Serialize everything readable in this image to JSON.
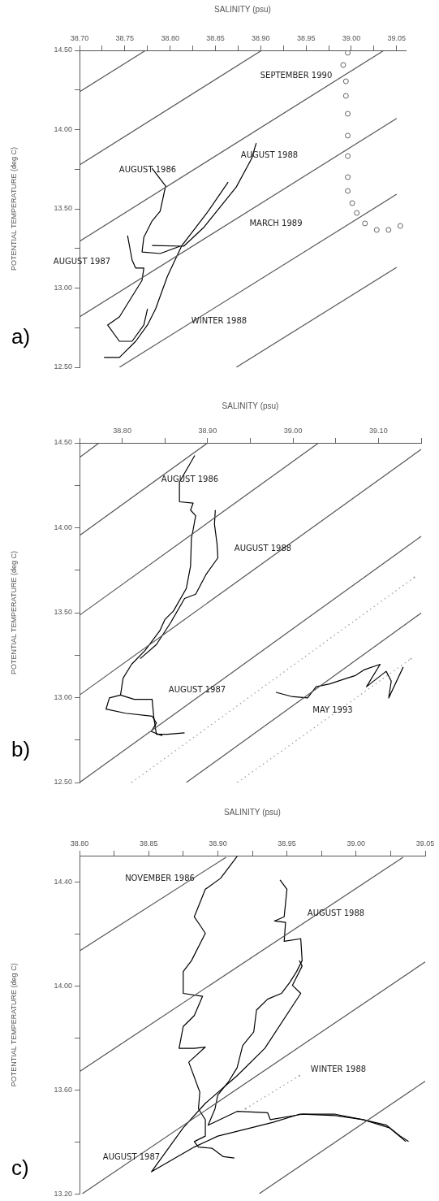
{
  "chart_data": [
    {
      "type": "line",
      "xlabel": "SALINITY (psu)",
      "ylabel": "POTENTIAL TEMPERATURE (deg C)",
      "xlim": [
        38.7,
        39.06
      ],
      "ylim": [
        12.5,
        14.5
      ],
      "xticks": [
        {
          "value": 38.7,
          "label": "38.70"
        },
        {
          "value": 38.725,
          "label": null
        },
        {
          "value": 38.75,
          "label": "38.75"
        },
        {
          "value": 38.775,
          "label": null
        },
        {
          "value": 38.8,
          "label": "38.80"
        },
        {
          "value": 38.825,
          "label": null
        },
        {
          "value": 38.85,
          "label": "38.85"
        },
        {
          "value": 38.875,
          "label": null
        },
        {
          "value": 38.9,
          "label": "38.90"
        },
        {
          "value": 38.925,
          "label": null
        },
        {
          "value": 38.95,
          "label": "38.95"
        },
        {
          "value": 38.975,
          "label": null
        },
        {
          "value": 39.0,
          "label": "39.00"
        },
        {
          "value": 39.025,
          "label": null
        },
        {
          "value": 39.05,
          "label": "39.05"
        }
      ],
      "yticks": [
        {
          "value": 14.5,
          "label": "14.50"
        },
        {
          "value": 14.25,
          "label": null
        },
        {
          "value": 14.0,
          "label": "14.00"
        },
        {
          "value": 13.75,
          "label": null
        },
        {
          "value": 13.5,
          "label": "13.50"
        },
        {
          "value": 13.25,
          "label": null
        },
        {
          "value": 13.0,
          "label": "13.00"
        },
        {
          "value": 12.75,
          "label": null
        },
        {
          "value": 12.5,
          "label": "12.50"
        }
      ],
      "series": [
        {
          "color": "#555555",
          "x": [
            38.7,
            38.773
          ],
          "values": [
            14.239,
            14.5
          ]
        },
        {
          "color": "#555555",
          "x": [
            38.7,
            38.901
          ],
          "values": [
            13.777,
            14.5
          ]
        },
        {
          "color": "#555555",
          "x": [
            38.7,
            39.036
          ],
          "values": [
            13.295,
            14.5
          ]
        },
        {
          "color": "#555555",
          "x": [
            38.7,
            39.05
          ],
          "values": [
            12.818,
            14.07
          ]
        },
        {
          "color": "#555555",
          "x": [
            38.744,
            39.05
          ],
          "values": [
            12.5,
            13.592
          ]
        },
        {
          "color": "#555555",
          "x": [
            38.873,
            39.05
          ],
          "values": [
            12.5,
            13.131
          ]
        },
        {
          "color": "#000000",
          "x": [
            38.78,
            38.795,
            38.789,
            38.78,
            38.771,
            38.769,
            38.789,
            38.811
          ],
          "values": [
            13.756,
            13.644,
            13.485,
            13.423,
            13.321,
            13.228,
            13.218,
            13.264
          ]
        },
        {
          "color": "#000000",
          "x": [
            38.895,
            38.89,
            38.873,
            38.837,
            38.815,
            38.78
          ],
          "values": [
            13.915,
            13.818,
            13.638,
            13.382,
            13.264,
            13.269
          ]
        },
        {
          "color": "#000000",
          "x": [
            38.864,
            38.842,
            38.813,
            38.797,
            38.784,
            38.775,
            38.762,
            38.744,
            38.727
          ],
          "values": [
            13.669,
            13.485,
            13.269,
            13.074,
            12.869,
            12.767,
            12.664,
            12.562,
            12.562
          ]
        },
        {
          "color": "#000000",
          "x": [
            38.753,
            38.758,
            38.762,
            38.771,
            38.769,
            38.744,
            38.731,
            38.744,
            38.758,
            38.771,
            38.775
          ],
          "values": [
            13.331,
            13.177,
            13.126,
            13.126,
            13.049,
            12.818,
            12.767,
            12.664,
            12.664,
            12.767,
            12.869
          ]
        },
        {
          "type": "scatter",
          "marker": "circle",
          "color": "#666666",
          "x": [
            38.996,
            38.991,
            38.994,
            38.994,
            38.996,
            38.996,
            38.996,
            38.996,
            38.996,
            39.001,
            39.006,
            39.015,
            39.028,
            39.041,
            39.054
          ],
          "values": [
            14.485,
            14.408,
            14.305,
            14.213,
            14.1,
            13.962,
            13.833,
            13.7,
            13.613,
            13.536,
            13.474,
            13.408,
            13.367,
            13.367,
            13.392
          ]
        }
      ],
      "annotations": [
        "SEPTEMBER 1990",
        "AUGUST 1988",
        "AUGUST 1986",
        "MARCH 1989",
        "AUGUST 1987",
        "WINTER 1988",
        "a)"
      ]
    },
    {
      "type": "line",
      "xlabel": "SALINITY (psu)",
      "ylabel": "POTENTIAL TEMPERATURE (deg C)",
      "xlim": [
        38.75,
        39.15
      ],
      "ylim": [
        12.5,
        14.5
      ],
      "xticks": [
        {
          "value": 38.75,
          "label": null
        },
        {
          "value": 38.8,
          "label": "38.80"
        },
        {
          "value": 38.85,
          "label": null
        },
        {
          "value": 38.9,
          "label": "38.90"
        },
        {
          "value": 38.95,
          "label": null
        },
        {
          "value": 39.0,
          "label": "39.00"
        },
        {
          "value": 39.05,
          "label": null
        },
        {
          "value": 39.1,
          "label": "39.10"
        },
        {
          "value": 39.15,
          "label": null
        }
      ],
      "yticks": [
        {
          "value": 14.5,
          "label": "14.50"
        },
        {
          "value": 14.25,
          "label": null
        },
        {
          "value": 14.0,
          "label": "14.00"
        },
        {
          "value": 13.75,
          "label": null
        },
        {
          "value": 13.5,
          "label": "13.50"
        },
        {
          "value": 13.25,
          "label": null
        },
        {
          "value": 13.0,
          "label": "13.00"
        },
        {
          "value": 12.75,
          "label": null
        },
        {
          "value": 12.5,
          "label": "12.50"
        }
      ],
      "series": [
        {
          "color": "#555555",
          "x": [
            38.75,
            38.773
          ],
          "values": [
            14.414,
            14.5
          ]
        },
        {
          "color": "#555555",
          "x": [
            38.75,
            38.9
          ],
          "values": [
            13.955,
            14.5
          ]
        },
        {
          "color": "#555555",
          "x": [
            38.75,
            39.03
          ],
          "values": [
            13.485,
            14.5
          ]
        },
        {
          "color": "#555555",
          "x": [
            38.75,
            39.15
          ],
          "values": [
            13.015,
            14.462
          ]
        },
        {
          "color": "#555555",
          "x": [
            38.75,
            39.15
          ],
          "values": [
            12.5,
            13.95
          ]
        },
        {
          "color": "#555555",
          "x": [
            38.875,
            39.15
          ],
          "values": [
            12.5,
            13.498
          ]
        },
        {
          "color": "#999999",
          "line_style": "dotted",
          "x": [
            38.811,
            39.142
          ],
          "values": [
            12.5,
            13.708
          ]
        },
        {
          "color": "#999999",
          "line_style": "dotted",
          "x": [
            38.935,
            39.138
          ],
          "values": [
            12.5,
            13.229
          ]
        },
        {
          "color": "#000000",
          "x": [
            38.885,
            38.883,
            38.867,
            38.867,
            38.883,
            38.88,
            38.886,
            38.883,
            38.881,
            38.88,
            38.875,
            38.86,
            38.85,
            38.844,
            38.827,
            38.811,
            38.801,
            38.798,
            38.814,
            38.835,
            38.837,
            38.84,
            38.853,
            38.873
          ],
          "values": [
            14.426,
            14.409,
            14.269,
            14.153,
            14.145,
            14.104,
            14.071,
            13.988,
            13.939,
            13.774,
            13.642,
            13.51,
            13.46,
            13.394,
            13.279,
            13.196,
            13.114,
            13.015,
            12.99,
            12.99,
            12.883,
            12.784,
            12.784,
            12.792
          ]
        },
        {
          "color": "#000000",
          "x": [
            38.909,
            38.908,
            38.911,
            38.912,
            38.898,
            38.886,
            38.873,
            38.857,
            38.84,
            38.821
          ],
          "values": [
            14.104,
            14.021,
            13.906,
            13.823,
            13.724,
            13.609,
            13.584,
            13.444,
            13.312,
            13.229
          ]
        },
        {
          "color": "#000000",
          "x": [
            38.798,
            38.785,
            38.781,
            38.804,
            38.835,
            38.84,
            38.834,
            38.847
          ],
          "values": [
            13.015,
            12.998,
            12.932,
            12.908,
            12.891,
            12.85,
            12.8,
            12.776
          ]
        },
        {
          "color": "#000000",
          "x": [
            38.98,
            38.998,
            39.017,
            39.027,
            39.043,
            39.063,
            39.073,
            39.083,
            39.102,
            39.086,
            39.109,
            39.115,
            39.112,
            39.129
          ],
          "values": [
            13.031,
            13.007,
            12.998,
            13.064,
            13.081,
            13.114,
            13.13,
            13.163,
            13.196,
            13.064,
            13.155,
            13.097,
            12.998,
            13.18
          ]
        }
      ],
      "annotations": [
        "AUGUST 1986",
        "AUGUST 1988",
        "AUGUST 1987",
        "MAY 1993",
        "b)"
      ]
    },
    {
      "type": "line",
      "xlabel": "SALINITY (psu)",
      "ylabel": "POTENTIAL TEMPERATURE (deg C)",
      "xlim": [
        38.8,
        39.05
      ],
      "ylim": [
        13.2,
        14.5
      ],
      "xticks": [
        {
          "value": 38.8,
          "label": "38.80"
        },
        {
          "value": 38.825,
          "label": null
        },
        {
          "value": 38.85,
          "label": "38.85"
        },
        {
          "value": 38.875,
          "label": null
        },
        {
          "value": 38.9,
          "label": "38.90"
        },
        {
          "value": 38.925,
          "label": null
        },
        {
          "value": 38.95,
          "label": "38.95"
        },
        {
          "value": 38.975,
          "label": null
        },
        {
          "value": 39.0,
          "label": "39.00"
        },
        {
          "value": 39.025,
          "label": null
        },
        {
          "value": 39.05,
          "label": "39.05"
        }
      ],
      "yticks": [
        {
          "value": 14.4,
          "label": "14.40"
        },
        {
          "value": 14.2,
          "label": null
        },
        {
          "value": 14.0,
          "label": "14.00"
        },
        {
          "value": 13.8,
          "label": null
        },
        {
          "value": 13.6,
          "label": "13.60"
        },
        {
          "value": 13.4,
          "label": null
        },
        {
          "value": 13.2,
          "label": "13.20"
        }
      ],
      "series": [
        {
          "color": "#555555",
          "x": [
            38.8,
            38.906
          ],
          "values": [
            14.134,
            14.494
          ]
        },
        {
          "color": "#555555",
          "x": [
            38.8,
            39.034
          ],
          "values": [
            13.671,
            14.494
          ]
        },
        {
          "color": "#555555",
          "x": [
            38.802,
            39.05
          ],
          "values": [
            13.202,
            14.092
          ]
        },
        {
          "color": "#555555",
          "x": [
            38.93,
            39.05
          ],
          "values": [
            13.202,
            13.634
          ]
        },
        {
          "color": "#999999",
          "line_style": "dotted",
          "x": [
            38.92,
            38.959
          ],
          "values": [
            13.528,
            13.655
          ]
        },
        {
          "color": "#000000",
          "x": [
            38.914,
            38.902,
            38.891,
            38.883,
            38.887,
            38.891,
            38.881,
            38.875,
            38.875,
            38.889,
            38.883,
            38.875,
            38.872,
            38.883,
            38.891,
            38.879,
            38.887,
            38.886,
            38.891,
            38.891,
            38.883,
            38.886,
            38.896,
            38.904,
            38.912
          ],
          "values": [
            14.497,
            14.413,
            14.371,
            14.265,
            14.234,
            14.202,
            14.097,
            14.055,
            13.971,
            13.96,
            13.886,
            13.844,
            13.76,
            13.76,
            13.765,
            13.707,
            13.592,
            13.528,
            13.486,
            13.423,
            13.402,
            13.381,
            13.376,
            13.344,
            13.339
          ]
        },
        {
          "color": "#000000",
          "x": [
            38.945,
            38.95,
            38.948,
            38.941,
            38.949,
            38.948,
            38.96,
            38.961,
            38.957,
            38.952,
            38.946,
            38.936,
            38.928,
            38.926,
            38.918,
            38.914,
            38.908,
            38.9,
            38.898,
            38.893,
            38.914,
            38.936,
            38.938,
            38.961,
            38.985,
            39.005,
            39.022,
            39.032,
            39.038
          ],
          "values": [
            14.407,
            14.371,
            14.265,
            14.249,
            14.244,
            14.171,
            14.181,
            14.097,
            14.055,
            14.013,
            13.971,
            13.949,
            13.907,
            13.823,
            13.771,
            13.686,
            13.634,
            13.581,
            13.528,
            13.465,
            13.518,
            13.513,
            13.486,
            13.507,
            13.502,
            13.486,
            13.465,
            13.423,
            13.402
          ]
        },
        {
          "color": "#000000",
          "x": [
            38.959,
            38.961,
            38.954,
            38.96,
            38.934,
            38.914,
            38.891,
            38.875,
            38.852,
            38.883,
            38.9,
            38.916,
            38.94,
            38.959,
            38.985,
            39.005,
            39.024,
            39.036
          ],
          "values": [
            14.097,
            14.076,
            14.002,
            13.971,
            13.76,
            13.655,
            13.549,
            13.455,
            13.286,
            13.381,
            13.423,
            13.444,
            13.476,
            13.507,
            13.507,
            13.486,
            13.455,
            13.402
          ]
        }
      ],
      "annotations": [
        "NOVEMBER 1986",
        "AUGUST 1988",
        "WINTER 1988",
        "AUGUST 1987",
        "c)"
      ]
    }
  ]
}
